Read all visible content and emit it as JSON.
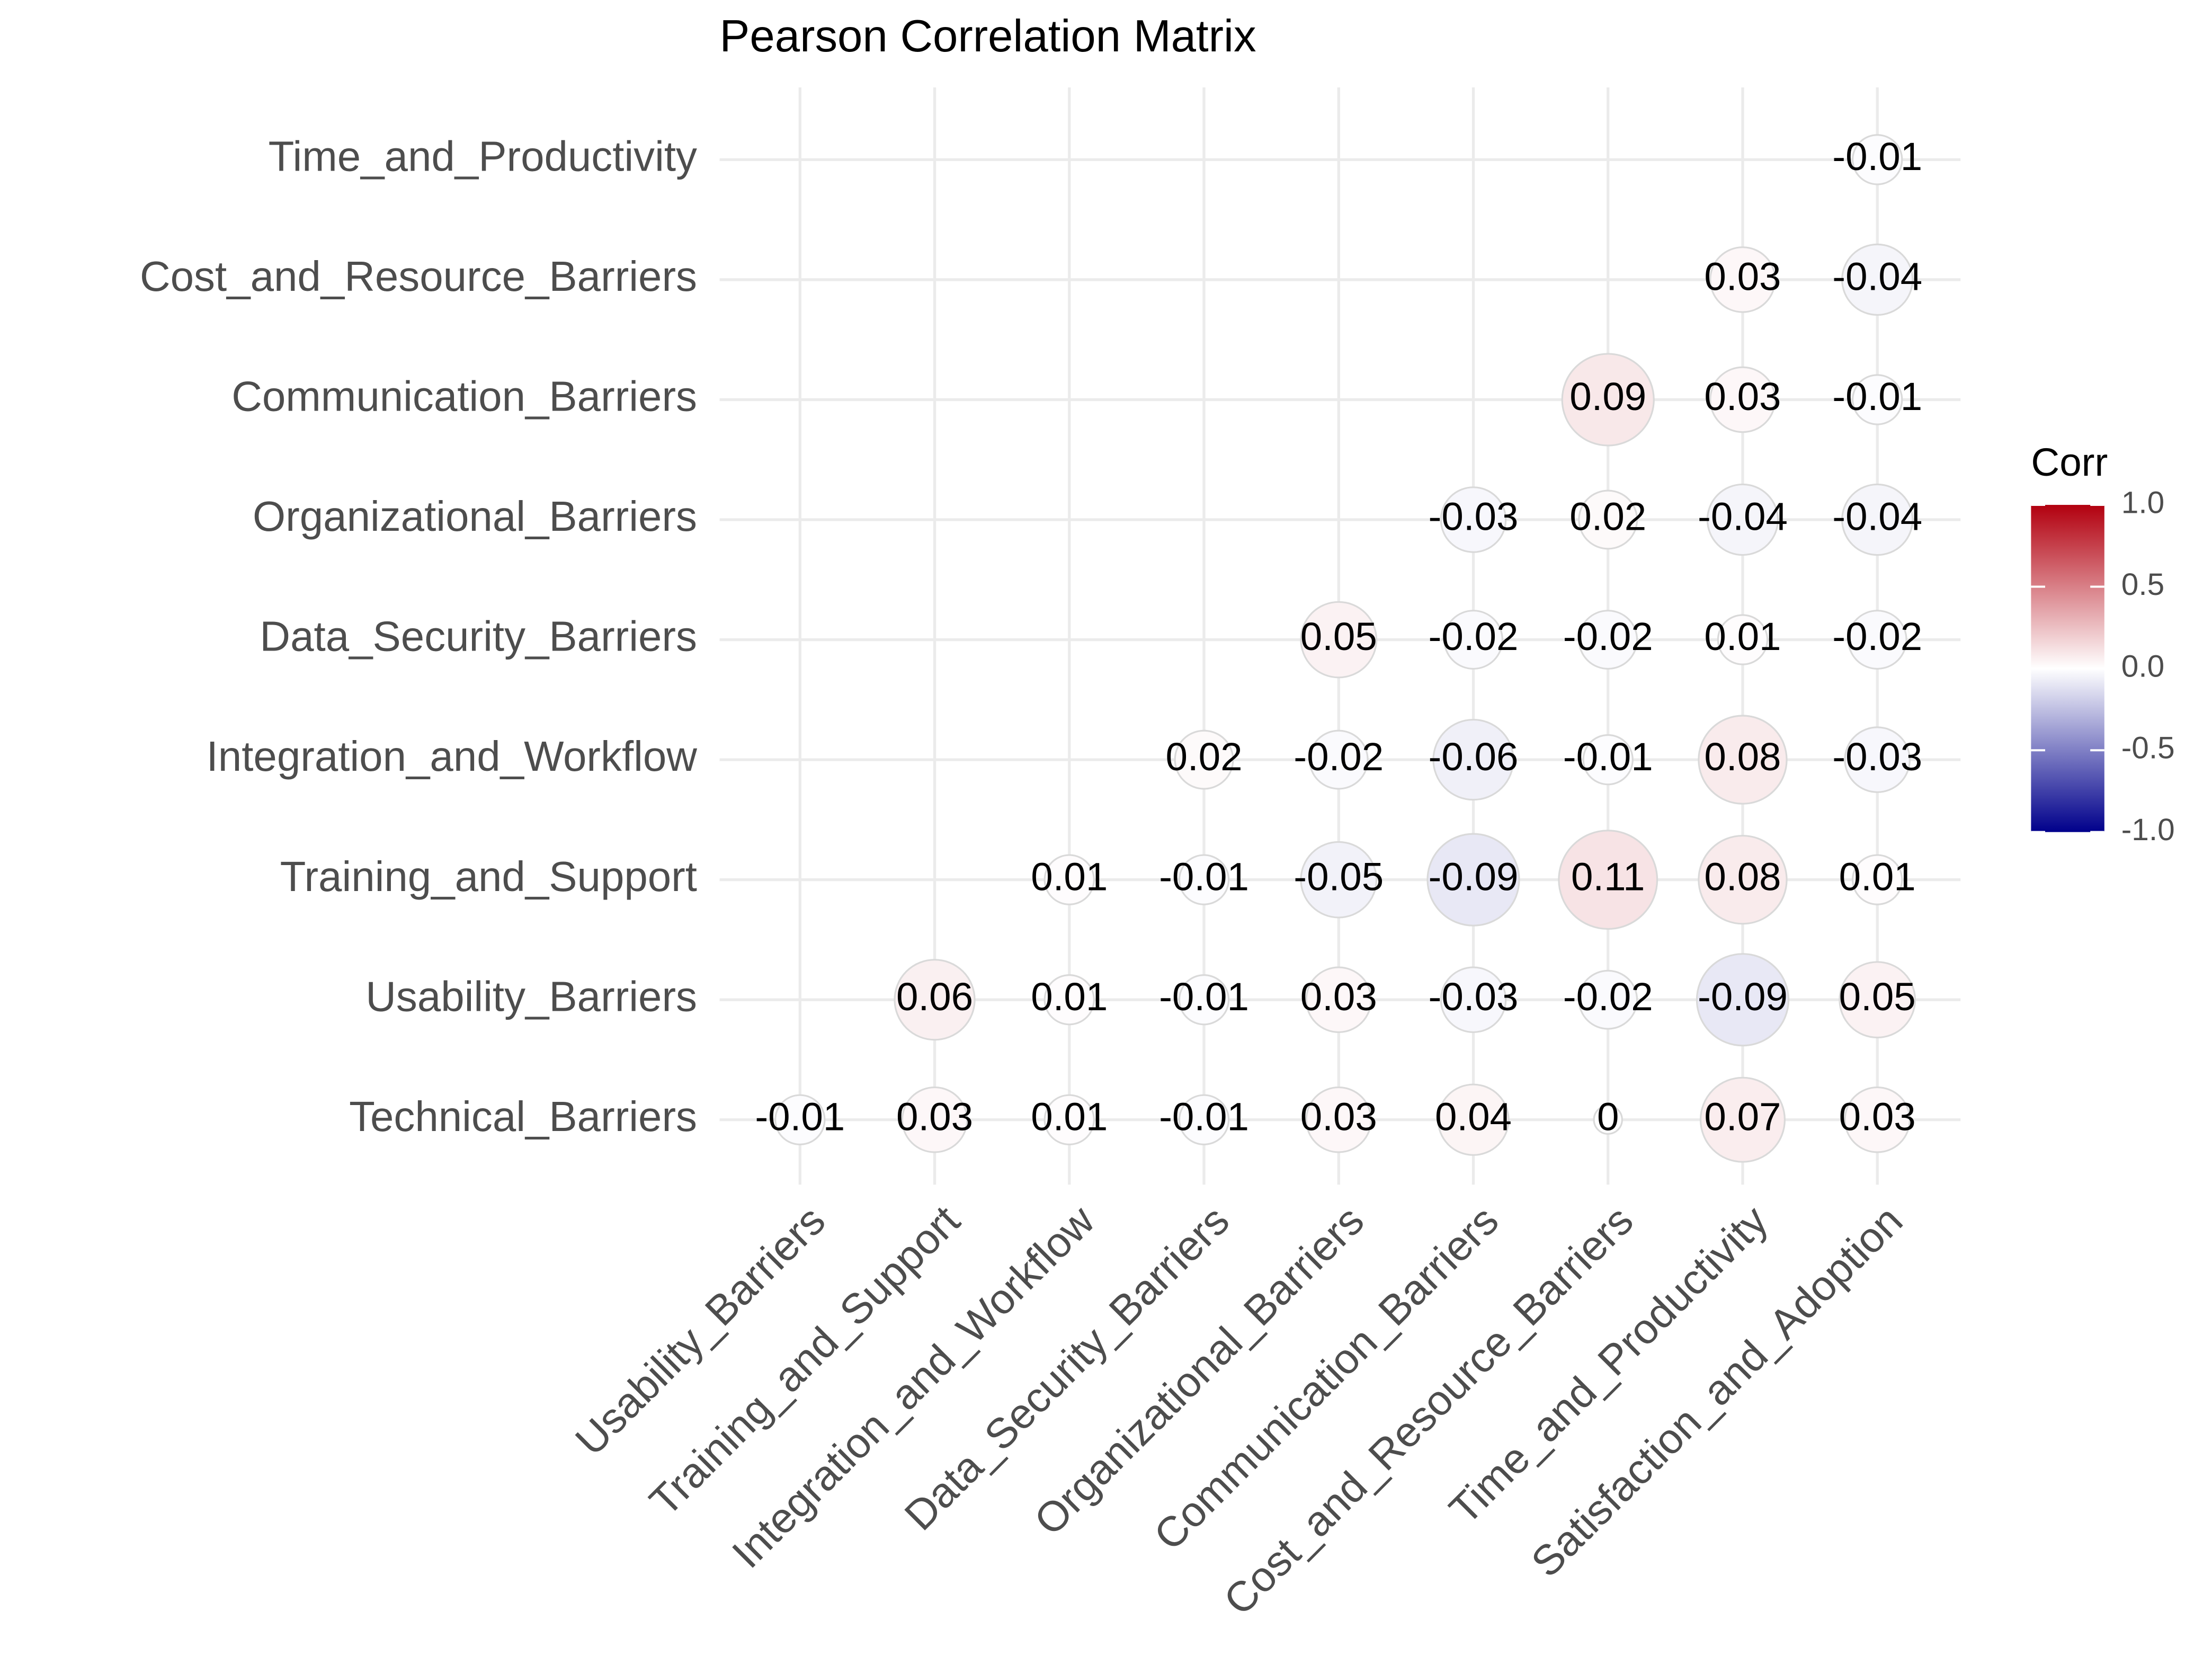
{
  "chart_data": {
    "type": "correlation",
    "title": "Pearson Correlation Matrix",
    "x_categories": [
      "Usability_Barriers",
      "Training_and_Support",
      "Integration_and_Workflow",
      "Data_Security_Barriers",
      "Organizational_Barriers",
      "Communication_Barriers",
      "Cost_and_Resource_Barriers",
      "Time_and_Productivity",
      "Satisfaction_and_Adoption"
    ],
    "y_categories": [
      "Technical_Barriers",
      "Usability_Barriers",
      "Training_and_Support",
      "Integration_and_Workflow",
      "Data_Security_Barriers",
      "Organizational_Barriers",
      "Communication_Barriers",
      "Cost_and_Resource_Barriers",
      "Time_and_Productivity"
    ],
    "values": [
      [
        -0.01,
        0.03,
        0.01,
        -0.01,
        0.03,
        0.04,
        0,
        0.07,
        0.03
      ],
      [
        null,
        0.06,
        0.01,
        -0.01,
        0.03,
        -0.03,
        -0.02,
        -0.09,
        0.05
      ],
      [
        null,
        null,
        0.01,
        -0.01,
        -0.05,
        -0.09,
        0.11,
        0.08,
        0.01
      ],
      [
        null,
        null,
        null,
        0.02,
        -0.02,
        -0.06,
        -0.01,
        0.08,
        -0.03
      ],
      [
        null,
        null,
        null,
        null,
        0.05,
        -0.02,
        -0.02,
        0.01,
        -0.02
      ],
      [
        null,
        null,
        null,
        null,
        null,
        -0.03,
        0.02,
        -0.04,
        -0.04
      ],
      [
        null,
        null,
        null,
        null,
        null,
        null,
        0.09,
        0.03,
        -0.01
      ],
      [
        null,
        null,
        null,
        null,
        null,
        null,
        null,
        0.03,
        -0.04
      ],
      [
        null,
        null,
        null,
        null,
        null,
        null,
        null,
        null,
        -0.01
      ]
    ],
    "legend": {
      "title": "Corr",
      "lim": [
        -1,
        1
      ],
      "ticks": [
        {
          "value": 1,
          "label": "1.0"
        },
        {
          "value": 0.5,
          "label": "0.5"
        },
        {
          "value": 0,
          "label": "0.0"
        },
        {
          "value": -0.5,
          "label": "-0.5"
        },
        {
          "value": -1,
          "label": "-1.0"
        }
      ],
      "colors": [
        "#00008b",
        "#ffffff",
        "#b2000f"
      ]
    },
    "grid": true
  }
}
